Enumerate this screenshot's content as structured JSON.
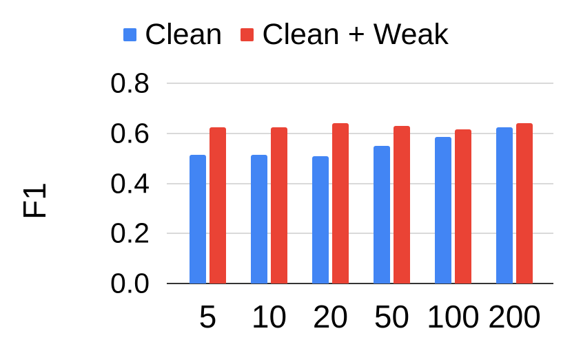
{
  "chart_data": {
    "type": "bar",
    "title": "",
    "categories": [
      "5",
      "10",
      "20",
      "50",
      "100",
      "200"
    ],
    "series": [
      {
        "name": "Clean",
        "color": "#4285F4",
        "values": [
          0.515,
          0.515,
          0.51,
          0.55,
          0.585,
          0.625
        ]
      },
      {
        "name": "Clean + Weak",
        "color": "#EA4335",
        "values": [
          0.625,
          0.625,
          0.64,
          0.63,
          0.615,
          0.64
        ]
      }
    ],
    "xlabel": "",
    "ylabel": "F1",
    "ylim": [
      0,
      0.8
    ],
    "yticks": [
      {
        "value": 0.0,
        "label": "0.0"
      },
      {
        "value": 0.2,
        "label": "0.2"
      },
      {
        "value": 0.4,
        "label": "0.4"
      },
      {
        "value": 0.6,
        "label": "0.6"
      },
      {
        "value": 0.8,
        "label": "0.8"
      }
    ],
    "legend_position": "top",
    "grid": true,
    "colors": {
      "gridline": "#D9D9D9",
      "baseline": "#333333",
      "text": "#000000",
      "background": "#FFFFFF"
    }
  }
}
